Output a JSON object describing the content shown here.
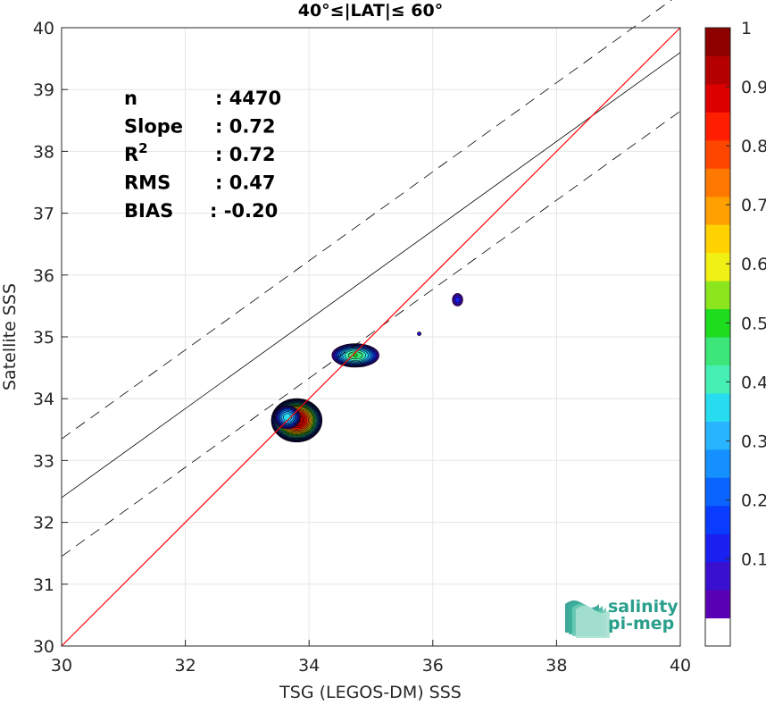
{
  "chart_data": {
    "type": "heatmap",
    "title": "40°≤|LAT|≤ 60°",
    "xlabel": "TSG (LEGOS-DM) SSS",
    "ylabel": "Satellite SSS",
    "xlim": [
      30,
      40
    ],
    "ylim": [
      30,
      40
    ],
    "xticks": [
      "30",
      "32",
      "34",
      "36",
      "38",
      "40"
    ],
    "yticks": [
      "30",
      "31",
      "32",
      "33",
      "34",
      "35",
      "36",
      "37",
      "38",
      "39",
      "40"
    ],
    "grid": true,
    "stats": [
      {
        "label": "n",
        "value": ": 4470"
      },
      {
        "label": "Slope",
        "value": ": 0.72"
      },
      {
        "label": "R",
        "sup": "2",
        "value": ": 0.72"
      },
      {
        "label": "RMS",
        "value": ": 0.47"
      },
      {
        "label": "BIAS",
        "value": ": -0.20"
      }
    ],
    "regression": {
      "slope": 0.72,
      "intercept": 10.8
    },
    "identity_line": {
      "slope": 1,
      "intercept": 0
    },
    "confidence_band_offset": 0.95,
    "colorbar": {
      "range": [
        0,
        1
      ],
      "tick_labels": [
        "0.1",
        "0.2",
        "0.3",
        "0.4",
        "0.5",
        "0.6",
        "0.7",
        "0.8",
        "0.9",
        "1"
      ],
      "colors": [
        "#ffffff",
        "#5a00b4",
        "#3a10d0",
        "#1a20f0",
        "#0a3cff",
        "#0a64ff",
        "#1490ff",
        "#28b4ff",
        "#28dcf0",
        "#46f0b4",
        "#3ce678",
        "#1edc1e",
        "#8ce61e",
        "#f0f014",
        "#ffd200",
        "#ffa000",
        "#ff7800",
        "#ff4600",
        "#ff1e00",
        "#dc0000",
        "#b40000",
        "#8c0000"
      ]
    },
    "density_clusters": [
      {
        "center": [
          33.8,
          33.65
        ],
        "sx": 0.42,
        "sy": 0.36,
        "peak": 1.0
      },
      {
        "center": [
          33.65,
          33.7
        ],
        "sx": 0.22,
        "sy": 0.2,
        "peak": 0.4
      },
      {
        "center": [
          34.75,
          34.7
        ],
        "sx": 0.4,
        "sy": 0.2,
        "peak": 0.5
      },
      {
        "center": [
          36.4,
          35.6
        ],
        "sx": 0.1,
        "sy": 0.12,
        "peak": 0.15
      },
      {
        "center": [
          35.78,
          35.05
        ],
        "sx": 0.04,
        "sy": 0.03,
        "peak": 0.1
      }
    ],
    "logo": {
      "line1": "salinity",
      "line2": "pi-mep"
    }
  }
}
